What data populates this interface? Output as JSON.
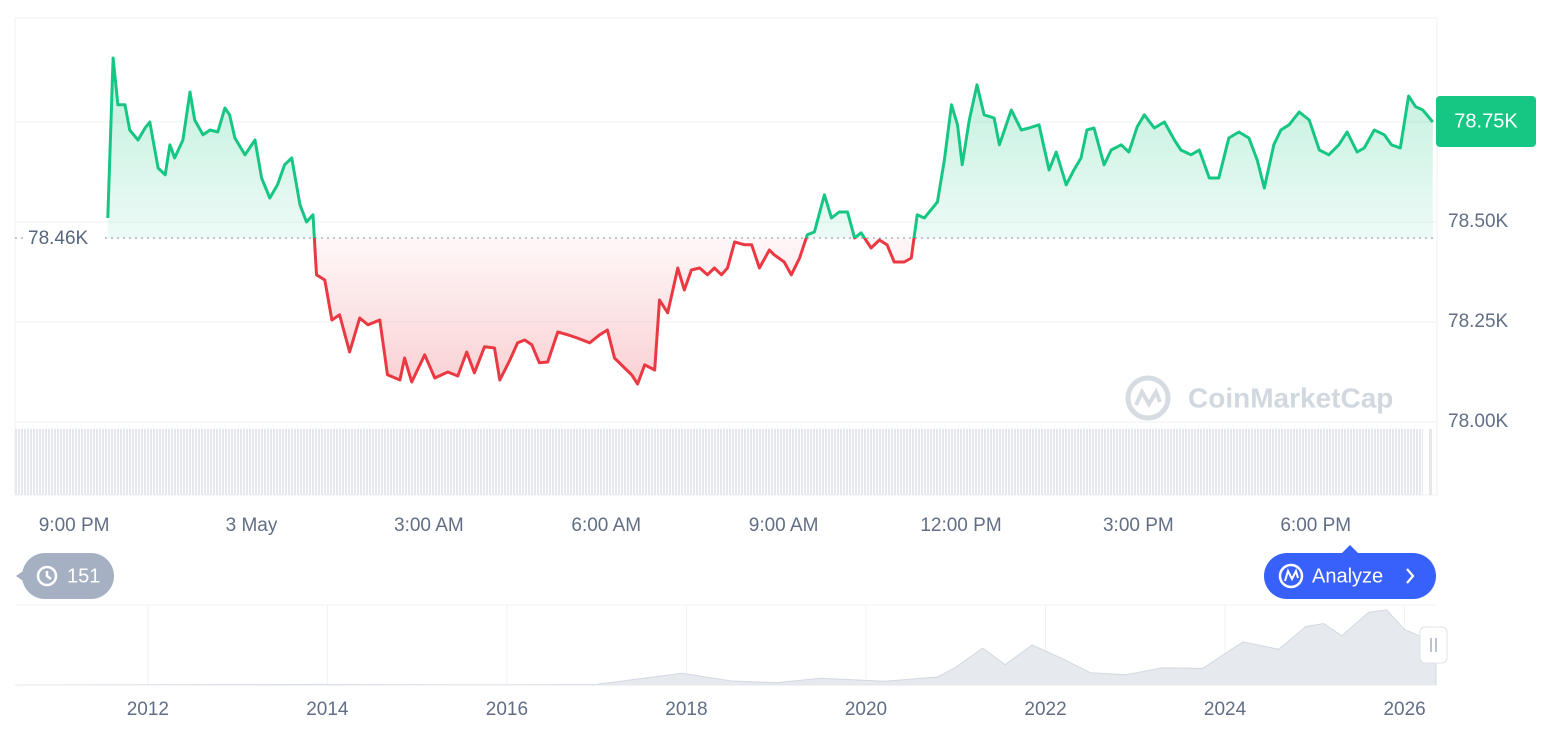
{
  "chart_data": [
    {
      "type": "line",
      "x": [
        1.57,
        1.66,
        1.74,
        1.86,
        1.94,
        2.08,
        2.2,
        2.28,
        2.42,
        2.54,
        2.62,
        2.7,
        2.84,
        2.96,
        3.04,
        3.18,
        3.3,
        3.43,
        3.55,
        3.63,
        3.72,
        3.89,
        4.06,
        4.17,
        4.31,
        4.44,
        4.56,
        4.68,
        4.82,
        4.93,
        5.04,
        5.1,
        5.24,
        5.36,
        5.49,
        5.66,
        5.83,
        5.97,
        6.17,
        6.3,
        6.51,
        6.59,
        6.71,
        6.93,
        7.1,
        7.32,
        7.49,
        7.64,
        7.77,
        7.94,
        8.11,
        8.2,
        8.37,
        8.5,
        8.62,
        8.74,
        8.87,
        9.01,
        9.18,
        9.35,
        9.51,
        9.72,
        9.89,
        10.02,
        10.14,
        10.31,
        10.43,
        10.53,
        10.65,
        10.82,
        10.9,
        11.04,
        11.21,
        11.32,
        11.44,
        11.58,
        11.71,
        11.83,
        11.95,
        12.05,
        12.17,
        12.34,
        12.46,
        12.59,
        12.76,
        12.84,
        13.01,
        13.13,
        13.27,
        13.4,
        13.52,
        13.69,
        13.81,
        13.94,
        14.08,
        14.2,
        14.31,
        14.48,
        14.62,
        14.75,
        14.87,
        15.04,
        15.16,
        15.26,
        15.38,
        15.6,
        15.72,
        15.84,
        15.94,
        16.02,
        16.14,
        16.27,
        16.39,
        16.56,
        16.65,
        16.85,
        17.02,
        17.15,
        17.32,
        17.49,
        17.61,
        17.78,
        17.91,
        18.03,
        18.13,
        18.25,
        18.42,
        18.54,
        18.71,
        18.84,
        18.98,
        19.1,
        19.27,
        19.44,
        19.61,
        19.72,
        19.89,
        20.03,
        20.2,
        20.36,
        20.53,
        20.7,
        20.87,
        21.01,
        21.13,
        21.29,
        21.41,
        21.55,
        21.72,
        21.89,
        22.06,
        22.22,
        22.39,
        22.53,
        22.7,
        22.82,
        22.99,
        23.16,
        23.28,
        23.43,
        23.57,
        23.69,
        23.81,
        23.98
      ],
      "values": [
        78510,
        78910,
        78793,
        78793,
        78730,
        78705,
        78735,
        78750,
        78635,
        78618,
        78693,
        78660,
        78705,
        78825,
        78755,
        78718,
        78730,
        78725,
        78785,
        78768,
        78710,
        78668,
        78705,
        78610,
        78560,
        78593,
        78643,
        78660,
        78543,
        78500,
        78518,
        78368,
        78355,
        78255,
        78268,
        78175,
        78260,
        78243,
        78255,
        78118,
        78105,
        78160,
        78100,
        78168,
        78110,
        78125,
        78115,
        78175,
        78123,
        78188,
        78185,
        78105,
        78155,
        78198,
        78205,
        78193,
        78148,
        78150,
        78225,
        78218,
        78210,
        78198,
        78218,
        78230,
        78160,
        78135,
        78118,
        78095,
        78143,
        78130,
        78305,
        78273,
        78385,
        78330,
        78380,
        78385,
        78368,
        78385,
        78368,
        78385,
        78450,
        78443,
        78443,
        78385,
        78430,
        78418,
        78400,
        78368,
        78410,
        78468,
        78475,
        78568,
        78510,
        78525,
        78525,
        78460,
        78473,
        78435,
        78455,
        78443,
        78400,
        78400,
        78410,
        78518,
        78510,
        78550,
        78655,
        78793,
        78743,
        78643,
        78755,
        78843,
        78768,
        78760,
        78693,
        78780,
        78730,
        78735,
        78743,
        78630,
        78675,
        78593,
        78630,
        78660,
        78730,
        78735,
        78643,
        78680,
        78693,
        78675,
        78738,
        78768,
        78735,
        78750,
        78705,
        78680,
        78668,
        78680,
        78610,
        78610,
        78710,
        78725,
        78710,
        78655,
        78585,
        78693,
        78730,
        78743,
        78775,
        78755,
        78680,
        78668,
        78693,
        78725,
        78675,
        78685,
        78730,
        78718,
        78693,
        78685,
        78815,
        78788,
        78780,
        78750
      ],
      "color_up": "#16c784",
      "color_down": "#ea3943",
      "xlim": [
        0,
        24
      ],
      "ylim": [
        78000,
        79010
      ],
      "xticks": [
        {
          "value": 1,
          "label": "9:00 PM"
        },
        {
          "value": 4,
          "label": "3 May"
        },
        {
          "value": 7,
          "label": "3:00 AM"
        },
        {
          "value": 10,
          "label": "6:00 AM"
        },
        {
          "value": 13,
          "label": "9:00 AM"
        },
        {
          "value": 16,
          "label": "12:00 PM"
        },
        {
          "value": 19,
          "label": "3:00 PM"
        },
        {
          "value": 22,
          "label": "6:00 PM"
        }
      ],
      "yticks": [
        {
          "value": 78000,
          "label": "78.00K"
        },
        {
          "value": 78250,
          "label": "78.25K"
        },
        {
          "value": 78500,
          "label": "78.50K"
        },
        {
          "value": 78750,
          "label": "78.75K"
        }
      ],
      "grid": true,
      "baseline": {
        "value": 78460,
        "label": "78.46K"
      },
      "last_price": {
        "value": 78750,
        "label": "78.75K"
      }
    },
    {
      "type": "area",
      "x": [
        2010.6,
        2013.9,
        2014.5,
        2015.5,
        2016.5,
        2017.0,
        2017.95,
        2018.5,
        2019.0,
        2019.5,
        2020.2,
        2020.8,
        2021.0,
        2021.3,
        2021.55,
        2021.85,
        2022.2,
        2022.5,
        2022.9,
        2023.3,
        2023.75,
        2024.2,
        2024.6,
        2024.9,
        2025.1,
        2025.3,
        2025.6,
        2025.8,
        2026.0,
        2026.2,
        2026.35
      ],
      "values": [
        0,
        1000,
        600,
        250,
        650,
        1000,
        19000,
        6500,
        3700,
        11000,
        6000,
        13000,
        29000,
        60000,
        33000,
        65000,
        42000,
        20000,
        16500,
        28000,
        27000,
        70000,
        58000,
        95000,
        100000,
        80000,
        118000,
        122000,
        90000,
        78000,
        78750
      ],
      "color": "#e6e9ee",
      "xlim": [
        2010.52,
        2026.35
      ],
      "ylim": [
        0,
        130000
      ],
      "xticks": [
        2012,
        2014,
        2016,
        2018,
        2020,
        2022,
        2024,
        2026
      ],
      "grid": true
    }
  ],
  "ui": {
    "history_count": 151,
    "analyze": "Analyze",
    "watermark": "CoinMarketCap"
  }
}
